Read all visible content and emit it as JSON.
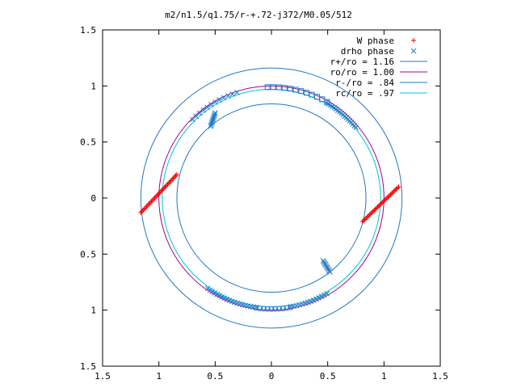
{
  "chart_data": {
    "type": "scatter",
    "title": "m2/n1.5/q1.75/r-+.72-j372/M0.05/512",
    "xlabel": "",
    "ylabel": "",
    "xlim": [
      -1.5,
      1.5
    ],
    "ylim": [
      -1.5,
      1.5
    ],
    "grid": false,
    "legend_position": "top-right",
    "x_ticks": [
      -1.5,
      -1,
      -0.5,
      0,
      0.5,
      1,
      1.5
    ],
    "x_tick_labels": [
      "1.5",
      "1",
      "0.5",
      "0",
      "0.5",
      "1",
      "1.5"
    ],
    "y_ticks": [
      1.5,
      1,
      0.5,
      0,
      -0.5,
      -1,
      -1.5
    ],
    "y_tick_labels": [
      "1.5",
      "1",
      "0.5",
      "0",
      "0.5",
      "1",
      "1.5"
    ],
    "circles": [
      {
        "name": "r+/ro = 1.16",
        "radius": 1.16,
        "color": "#1e78c8"
      },
      {
        "name": "ro/ro = 1.00",
        "radius": 1.0,
        "color": "#a000a0"
      },
      {
        "name": "r-/ro = .84",
        "radius": 0.84,
        "color": "#1e78c8"
      },
      {
        "name": "rc/ro = .97",
        "radius": 0.97,
        "color": "#00c8c8"
      }
    ],
    "point_series": [
      {
        "name": "W phase",
        "marker": "plus",
        "color": "#ff0000",
        "segments": [
          {
            "from": [
              0.81,
              -0.21
            ],
            "to": [
              1.13,
              0.1
            ],
            "n": 32
          },
          {
            "from": [
              -1.16,
              -0.13
            ],
            "to": [
              -0.84,
              0.21
            ],
            "n": 32
          }
        ]
      },
      {
        "name": "drho phase",
        "marker": "cross",
        "color": "#1e78c8",
        "arcs": [
          {
            "radius": 0.99,
            "from_deg": 92,
            "to_deg": 60,
            "n": 12,
            "marker": "square"
          },
          {
            "radius": 0.98,
            "from_deg": 60,
            "to_deg": 40,
            "n": 18
          },
          {
            "radius": 0.99,
            "from_deg": 135,
            "to_deg": 108,
            "n": 12
          },
          {
            "radius": 0.985,
            "from_deg": 235,
            "to_deg": 262,
            "n": 20
          },
          {
            "radius": 0.99,
            "from_deg": 262,
            "to_deg": 280,
            "n": 10,
            "marker": "circle"
          },
          {
            "radius": 0.985,
            "from_deg": 280,
            "to_deg": 300,
            "n": 14
          }
        ],
        "segments": [
          {
            "from": [
              -0.54,
              0.64
            ],
            "to": [
              -0.5,
              0.76
            ],
            "n": 10
          },
          {
            "from": [
              0.46,
              -0.56
            ],
            "to": [
              0.52,
              -0.66
            ],
            "n": 10
          }
        ]
      }
    ]
  }
}
